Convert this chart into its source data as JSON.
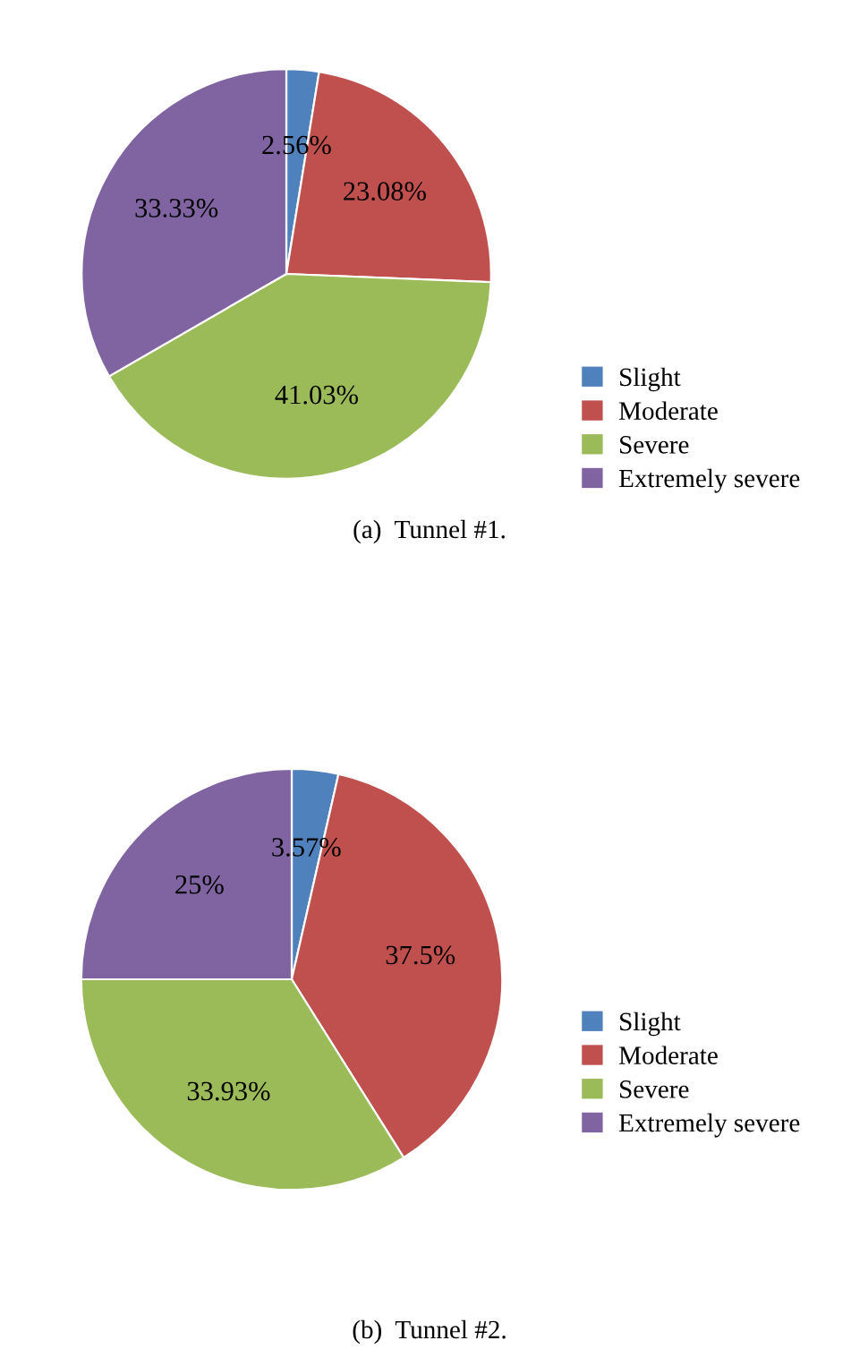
{
  "chart_data": [
    {
      "type": "pie",
      "title": "(a)  Tunnel #1.",
      "categories": [
        "Slight",
        "Moderate",
        "Severe",
        "Extremely severe"
      ],
      "values": [
        2.56,
        23.08,
        41.03,
        33.33
      ],
      "value_labels": [
        "2.56%",
        "23.08%",
        "41.03%",
        "33.33%"
      ],
      "colors": [
        "#4f81bd",
        "#c0504d",
        "#9bbb59",
        "#8064a2"
      ],
      "legend": "right"
    },
    {
      "type": "pie",
      "title": "(b)  Tunnel #2.",
      "categories": [
        "Slight",
        "Moderate",
        "Severe",
        "Extremely severe"
      ],
      "values": [
        3.57,
        37.5,
        33.93,
        25
      ],
      "value_labels": [
        "3.57%",
        "37.5%",
        "33.93%",
        "25%"
      ],
      "colors": [
        "#4f81bd",
        "#c0504d",
        "#9bbb59",
        "#8064a2"
      ],
      "legend": "right"
    }
  ]
}
